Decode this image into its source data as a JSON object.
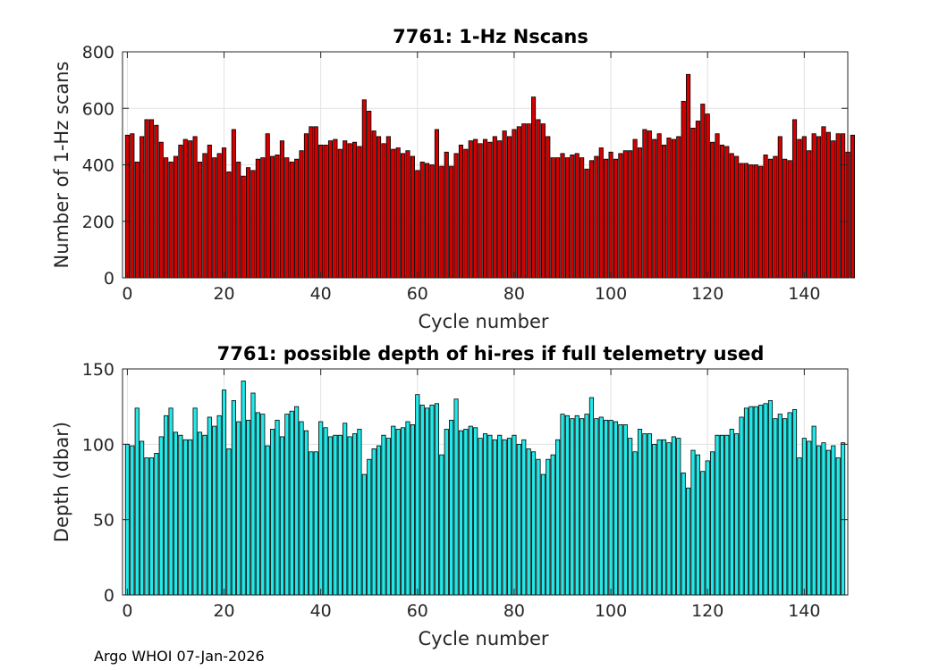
{
  "footer": "Argo WHOI 07-Jan-2026",
  "chart_data": [
    {
      "type": "bar",
      "title": "7761: 1-Hz Nscans",
      "xlabel": "Cycle number",
      "ylabel": "Number of 1-Hz scans",
      "xlim": [
        -1,
        149
      ],
      "ylim": [
        0,
        800
      ],
      "xticks": [
        0,
        20,
        40,
        60,
        80,
        100,
        120,
        140
      ],
      "yticks": [
        0,
        200,
        400,
        600,
        800
      ],
      "grid": true,
      "bar_color": "#d40000",
      "edge_color": "#000000",
      "x_start": 0,
      "values": [
        505,
        510,
        410,
        500,
        560,
        560,
        540,
        480,
        425,
        410,
        430,
        470,
        490,
        485,
        500,
        410,
        440,
        470,
        425,
        440,
        460,
        375,
        525,
        410,
        360,
        390,
        380,
        420,
        425,
        510,
        430,
        435,
        485,
        425,
        410,
        420,
        450,
        510,
        535,
        535,
        470,
        470,
        485,
        490,
        455,
        485,
        475,
        480,
        465,
        630,
        590,
        520,
        500,
        475,
        500,
        455,
        460,
        440,
        450,
        430,
        380,
        410,
        405,
        400,
        525,
        395,
        445,
        395,
        440,
        470,
        455,
        485,
        490,
        475,
        490,
        480,
        500,
        485,
        520,
        500,
        525,
        535,
        545,
        545,
        640,
        560,
        545,
        500,
        425,
        425,
        440,
        425,
        435,
        440,
        425,
        385,
        415,
        430,
        460,
        420,
        445,
        420,
        440,
        450,
        450,
        490,
        460,
        525,
        520,
        490,
        510,
        470,
        495,
        490,
        500,
        625,
        720,
        530,
        555,
        615,
        580,
        480,
        510,
        470,
        465,
        440,
        430,
        405,
        405,
        400,
        400,
        395,
        435,
        420,
        430,
        500,
        420,
        415,
        560,
        490,
        500,
        450,
        510,
        500,
        535,
        515,
        485,
        510,
        510,
        445,
        505
      ]
    },
    {
      "type": "bar",
      "title": "7761: possible depth of hi-res if full telemetry used",
      "xlabel": "Cycle number",
      "ylabel": "Depth (dbar)",
      "xlim": [
        -1,
        149
      ],
      "ylim": [
        0,
        150
      ],
      "xticks": [
        0,
        20,
        40,
        60,
        80,
        100,
        120,
        140
      ],
      "yticks": [
        0,
        50,
        100,
        150
      ],
      "grid": true,
      "bar_color": "#22e8e8",
      "edge_color": "#000000",
      "x_start": 0,
      "values": [
        100,
        99,
        124,
        102,
        91,
        91,
        94,
        105,
        119,
        124,
        108,
        106,
        103,
        103,
        124,
        108,
        106,
        118,
        112,
        119,
        136,
        97,
        129,
        115,
        142,
        116,
        134,
        121,
        120,
        99,
        110,
        116,
        105,
        120,
        122,
        125,
        115,
        109,
        95,
        95,
        115,
        111,
        105,
        106,
        106,
        114,
        105,
        107,
        110,
        80,
        90,
        97,
        99,
        106,
        104,
        112,
        110,
        111,
        115,
        113,
        133,
        126,
        124,
        126,
        127,
        93,
        110,
        116,
        130,
        109,
        110,
        112,
        111,
        104,
        107,
        106,
        103,
        106,
        103,
        104,
        106,
        100,
        103,
        97,
        95,
        90,
        80,
        90,
        93,
        103,
        120,
        119,
        117,
        119,
        117,
        120,
        131,
        117,
        118,
        116,
        116,
        115,
        113,
        113,
        104,
        95,
        110,
        107,
        107,
        100,
        103,
        103,
        101,
        105,
        104,
        81,
        71,
        96,
        93,
        82,
        89,
        95,
        106,
        106,
        106,
        110,
        107,
        118,
        124,
        125,
        125,
        126,
        127,
        129,
        117,
        120,
        117,
        121,
        123,
        91,
        104,
        102,
        112,
        99,
        101,
        96,
        99,
        91,
        101
      ]
    }
  ]
}
